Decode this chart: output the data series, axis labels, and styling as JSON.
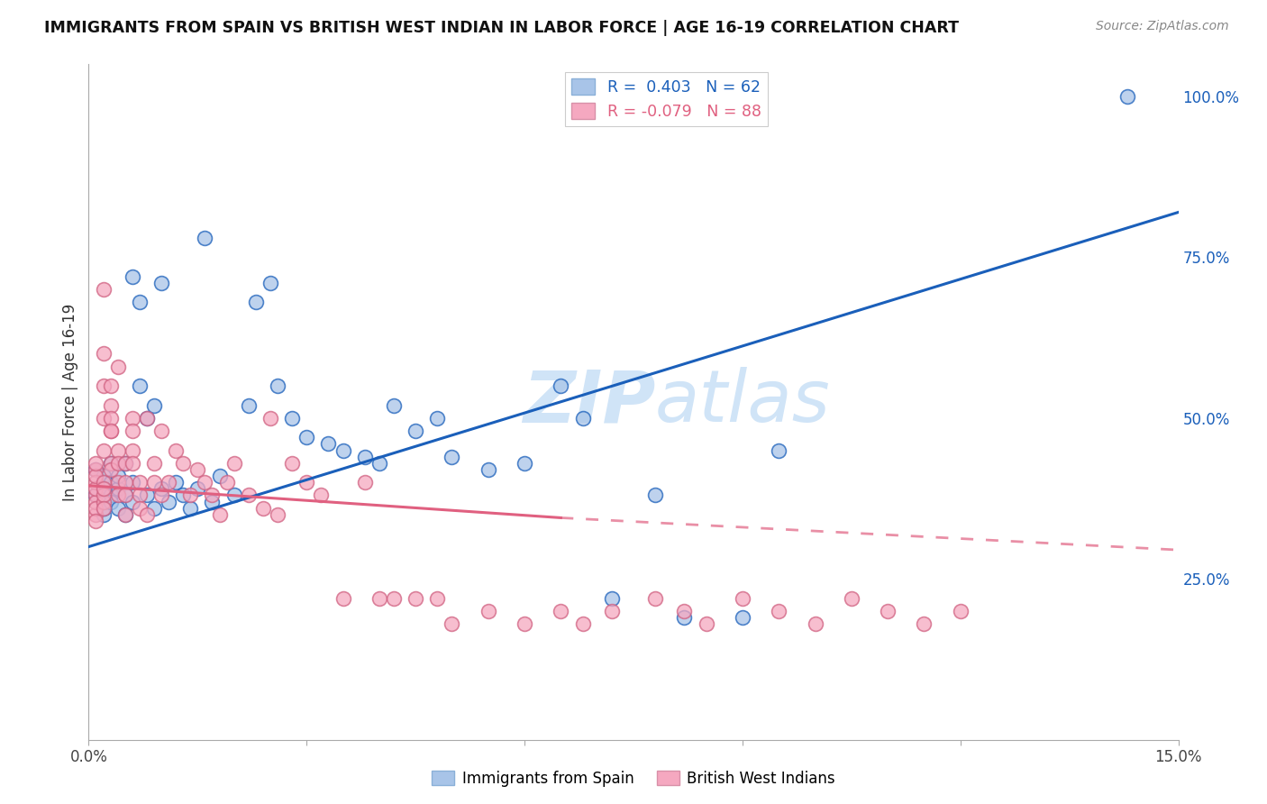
{
  "title": "IMMIGRANTS FROM SPAIN VS BRITISH WEST INDIAN IN LABOR FORCE | AGE 16-19 CORRELATION CHART",
  "source": "Source: ZipAtlas.com",
  "ylabel": "In Labor Force | Age 16-19",
  "xlim": [
    0.0,
    0.15
  ],
  "ylim": [
    0.0,
    1.05
  ],
  "color_spain": "#a8c4e8",
  "color_bwi": "#f5a8c0",
  "trendline_spain_color": "#1a5fba",
  "trendline_bwi_color": "#e06080",
  "watermark_color": "#d0e4f7",
  "spain_trendline": [
    0.0,
    0.15,
    0.3,
    0.82
  ],
  "bwi_trendline_solid": [
    0.0,
    0.065,
    0.395,
    0.345
  ],
  "bwi_trendline_dash": [
    0.065,
    0.15,
    0.345,
    0.295
  ],
  "spain_x": [
    0.001,
    0.001,
    0.002,
    0.002,
    0.002,
    0.002,
    0.002,
    0.002,
    0.003,
    0.003,
    0.003,
    0.003,
    0.004,
    0.004,
    0.004,
    0.005,
    0.005,
    0.005,
    0.006,
    0.006,
    0.006,
    0.007,
    0.007,
    0.008,
    0.008,
    0.009,
    0.009,
    0.01,
    0.01,
    0.011,
    0.012,
    0.013,
    0.014,
    0.015,
    0.016,
    0.017,
    0.018,
    0.02,
    0.022,
    0.023,
    0.025,
    0.026,
    0.028,
    0.03,
    0.033,
    0.035,
    0.038,
    0.04,
    0.042,
    0.045,
    0.048,
    0.05,
    0.055,
    0.06,
    0.065,
    0.068,
    0.072,
    0.078,
    0.082,
    0.09,
    0.095,
    0.143
  ],
  "spain_y": [
    0.38,
    0.42,
    0.35,
    0.4,
    0.37,
    0.39,
    0.36,
    0.41,
    0.38,
    0.43,
    0.37,
    0.4,
    0.36,
    0.39,
    0.41,
    0.38,
    0.35,
    0.43,
    0.37,
    0.4,
    0.72,
    0.68,
    0.55,
    0.38,
    0.5,
    0.36,
    0.52,
    0.39,
    0.71,
    0.37,
    0.4,
    0.38,
    0.36,
    0.39,
    0.78,
    0.37,
    0.41,
    0.38,
    0.52,
    0.68,
    0.71,
    0.55,
    0.5,
    0.47,
    0.46,
    0.45,
    0.44,
    0.43,
    0.52,
    0.48,
    0.5,
    0.44,
    0.42,
    0.43,
    0.55,
    0.5,
    0.22,
    0.38,
    0.19,
    0.19,
    0.45,
    1.0
  ],
  "bwi_x": [
    0.001,
    0.001,
    0.001,
    0.001,
    0.001,
    0.001,
    0.001,
    0.001,
    0.001,
    0.001,
    0.002,
    0.002,
    0.002,
    0.002,
    0.002,
    0.002,
    0.002,
    0.002,
    0.002,
    0.002,
    0.003,
    0.003,
    0.003,
    0.003,
    0.003,
    0.003,
    0.003,
    0.004,
    0.004,
    0.004,
    0.004,
    0.004,
    0.005,
    0.005,
    0.005,
    0.005,
    0.006,
    0.006,
    0.006,
    0.006,
    0.007,
    0.007,
    0.007,
    0.008,
    0.008,
    0.009,
    0.009,
    0.01,
    0.01,
    0.011,
    0.012,
    0.013,
    0.014,
    0.015,
    0.016,
    0.017,
    0.018,
    0.019,
    0.02,
    0.022,
    0.024,
    0.025,
    0.026,
    0.028,
    0.03,
    0.032,
    0.035,
    0.038,
    0.04,
    0.042,
    0.045,
    0.048,
    0.05,
    0.055,
    0.06,
    0.065,
    0.068,
    0.072,
    0.078,
    0.082,
    0.085,
    0.09,
    0.095,
    0.1,
    0.105,
    0.11,
    0.115,
    0.12
  ],
  "bwi_y": [
    0.38,
    0.42,
    0.35,
    0.4,
    0.37,
    0.39,
    0.36,
    0.41,
    0.43,
    0.34,
    0.7,
    0.37,
    0.4,
    0.38,
    0.36,
    0.6,
    0.39,
    0.55,
    0.5,
    0.45,
    0.43,
    0.48,
    0.52,
    0.55,
    0.5,
    0.48,
    0.42,
    0.58,
    0.45,
    0.43,
    0.4,
    0.38,
    0.43,
    0.4,
    0.38,
    0.35,
    0.5,
    0.48,
    0.45,
    0.43,
    0.4,
    0.38,
    0.36,
    0.5,
    0.35,
    0.43,
    0.4,
    0.48,
    0.38,
    0.4,
    0.45,
    0.43,
    0.38,
    0.42,
    0.4,
    0.38,
    0.35,
    0.4,
    0.43,
    0.38,
    0.36,
    0.5,
    0.35,
    0.43,
    0.4,
    0.38,
    0.22,
    0.4,
    0.22,
    0.22,
    0.22,
    0.22,
    0.18,
    0.2,
    0.18,
    0.2,
    0.18,
    0.2,
    0.22,
    0.2,
    0.18,
    0.22,
    0.2,
    0.18,
    0.22,
    0.2,
    0.18,
    0.2
  ]
}
